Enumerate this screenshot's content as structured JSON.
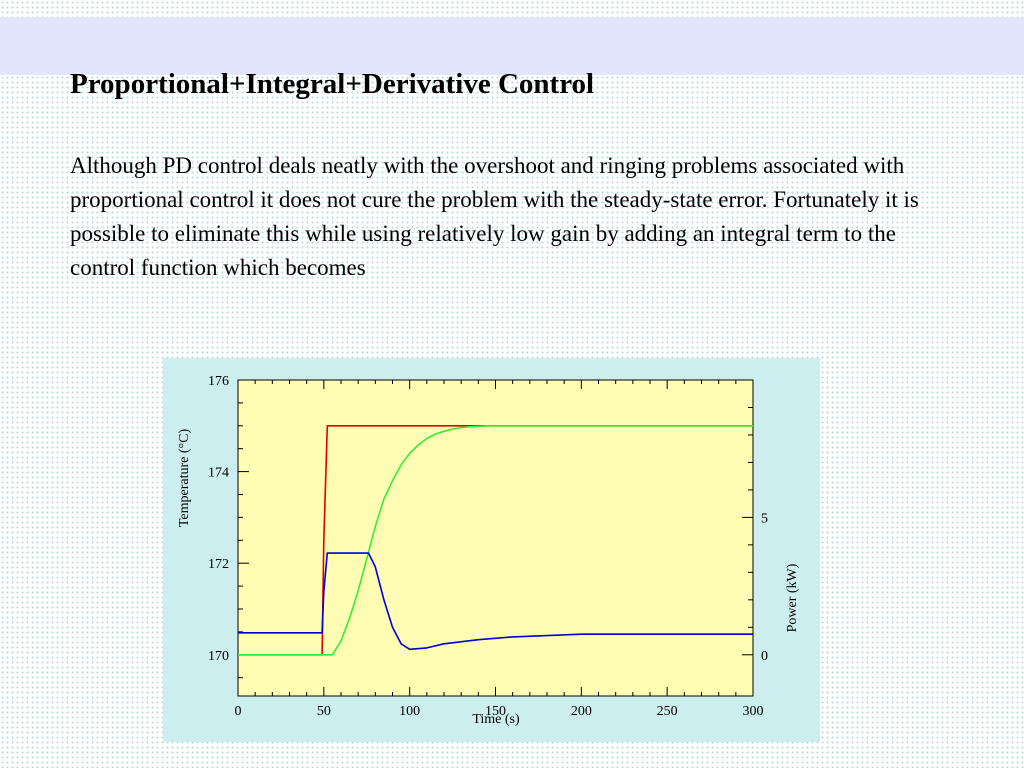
{
  "slide": {
    "title": "Proportional+Integral+Derivative Control",
    "body": "Although PD control deals neatly with the overshoot and ringing problems associated with proportional control it does not cure the problem with the steady-state error. Fortunately it is possible to eliminate this while using relatively low gain by adding an integral term to the control function which becomes"
  },
  "colors": {
    "band": "#e2e5fb",
    "panel_background": "#cdeeee",
    "plot_background": "#fffcb4",
    "setpoint": "#e00000",
    "temperature": "#33ee33",
    "power": "#0000dd"
  },
  "chart_data": {
    "type": "line",
    "title": "",
    "xlabel": "Time (s)",
    "ylabel": "Temperature (°C)",
    "y2label": "Power (kW)",
    "xlim": [
      0,
      300
    ],
    "ylim": [
      176,
      169.1
    ],
    "y2lim": [
      -1.5,
      10
    ],
    "xticks": [
      "0",
      "50",
      "100",
      "150",
      "200",
      "250",
      "300"
    ],
    "yticks": [
      "170",
      "172",
      "174",
      "176"
    ],
    "y2ticks": [
      "0",
      "5"
    ],
    "grid": false,
    "series": [
      {
        "key": "setpoint",
        "axis": "left",
        "x": [
          0,
          49,
          50,
          52,
          300
        ],
        "y": [
          170,
          170,
          172.5,
          175,
          175
        ]
      },
      {
        "key": "temperature",
        "axis": "left",
        "x": [
          0,
          55,
          60,
          65,
          70,
          75,
          80,
          85,
          90,
          95,
          100,
          105,
          110,
          115,
          120,
          125,
          130,
          135,
          140,
          145,
          150,
          160,
          300
        ],
        "y": [
          170,
          170,
          170.3,
          170.8,
          171.4,
          172.1,
          172.8,
          173.4,
          173.8,
          174.15,
          174.4,
          174.58,
          174.72,
          174.82,
          174.88,
          174.93,
          174.96,
          174.98,
          174.99,
          175,
          175,
          175,
          175
        ]
      },
      {
        "key": "power",
        "axis": "right",
        "x": [
          0,
          49,
          50,
          52,
          76,
          80,
          85,
          90,
          95,
          100,
          110,
          120,
          140,
          160,
          200,
          300
        ],
        "y": [
          0.8,
          0.8,
          2.3,
          3.7,
          3.7,
          3.2,
          2.0,
          1.0,
          0.4,
          0.2,
          0.25,
          0.4,
          0.55,
          0.65,
          0.75,
          0.75
        ]
      }
    ]
  }
}
